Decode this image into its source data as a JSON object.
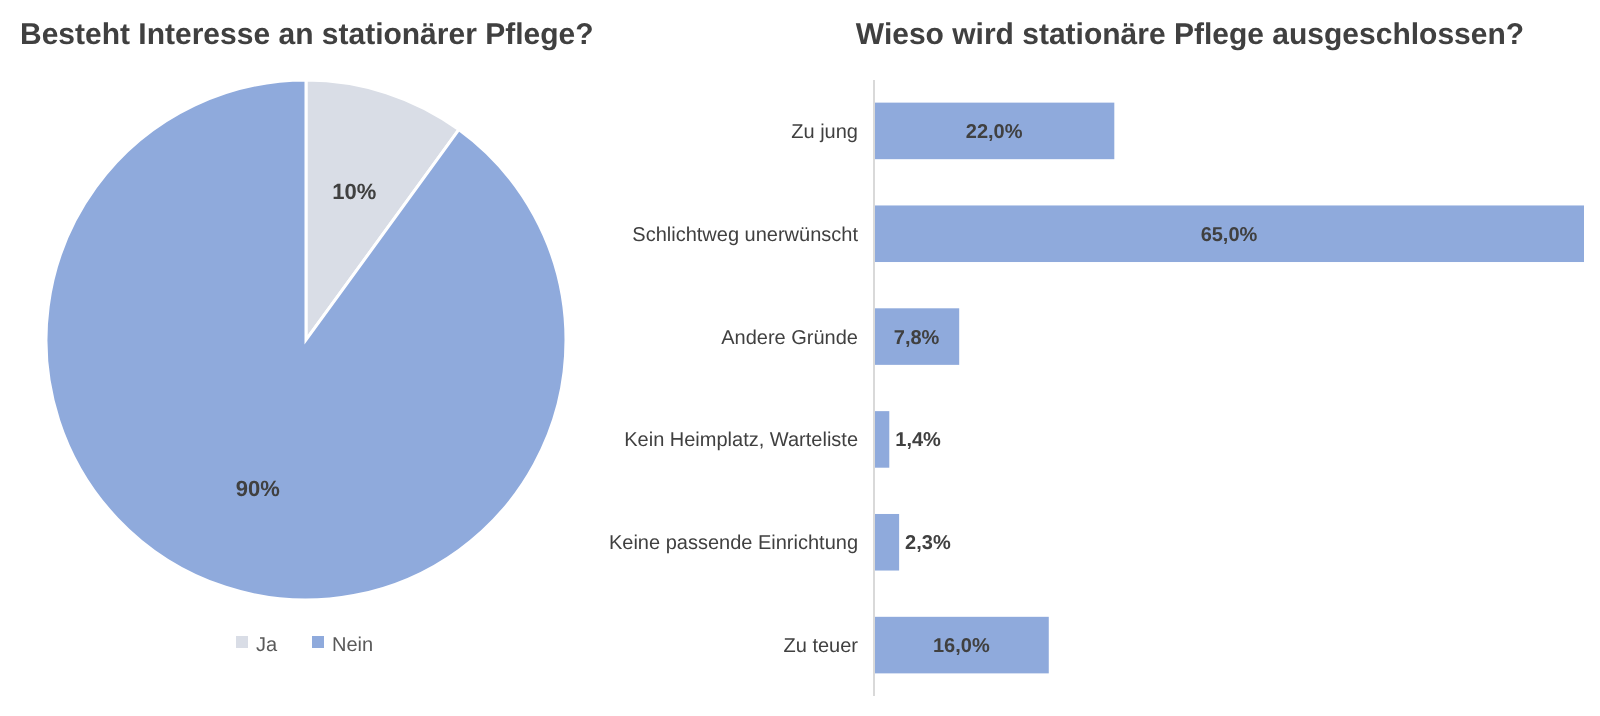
{
  "chart_data": [
    {
      "type": "pie",
      "title": "Besteht Interesse an stationärer Pflege?",
      "categories": [
        "Ja",
        "Nein"
      ],
      "values": [
        10,
        90
      ],
      "colors": [
        "#d9dde6",
        "#8faadc"
      ],
      "value_labels": [
        "10%",
        "90%"
      ],
      "legend": "bottom"
    },
    {
      "type": "bar",
      "title": "Wieso wird stationäre Pflege ausgeschlossen?",
      "orientation": "horizontal",
      "categories": [
        "Zu jung",
        "Schlichtweg unerwünscht",
        "Andere Gründe",
        "Kein Heimplatz, Warteliste",
        "Keine passende Einrichtung",
        "Zu teuer"
      ],
      "values": [
        22.0,
        65.0,
        7.8,
        1.4,
        2.3,
        16.0
      ],
      "color": "#8faadc",
      "value_labels": [
        "22,0%",
        "65,0%",
        "7,8%",
        "1,4%",
        "2,3%",
        "16,0%"
      ]
    }
  ]
}
